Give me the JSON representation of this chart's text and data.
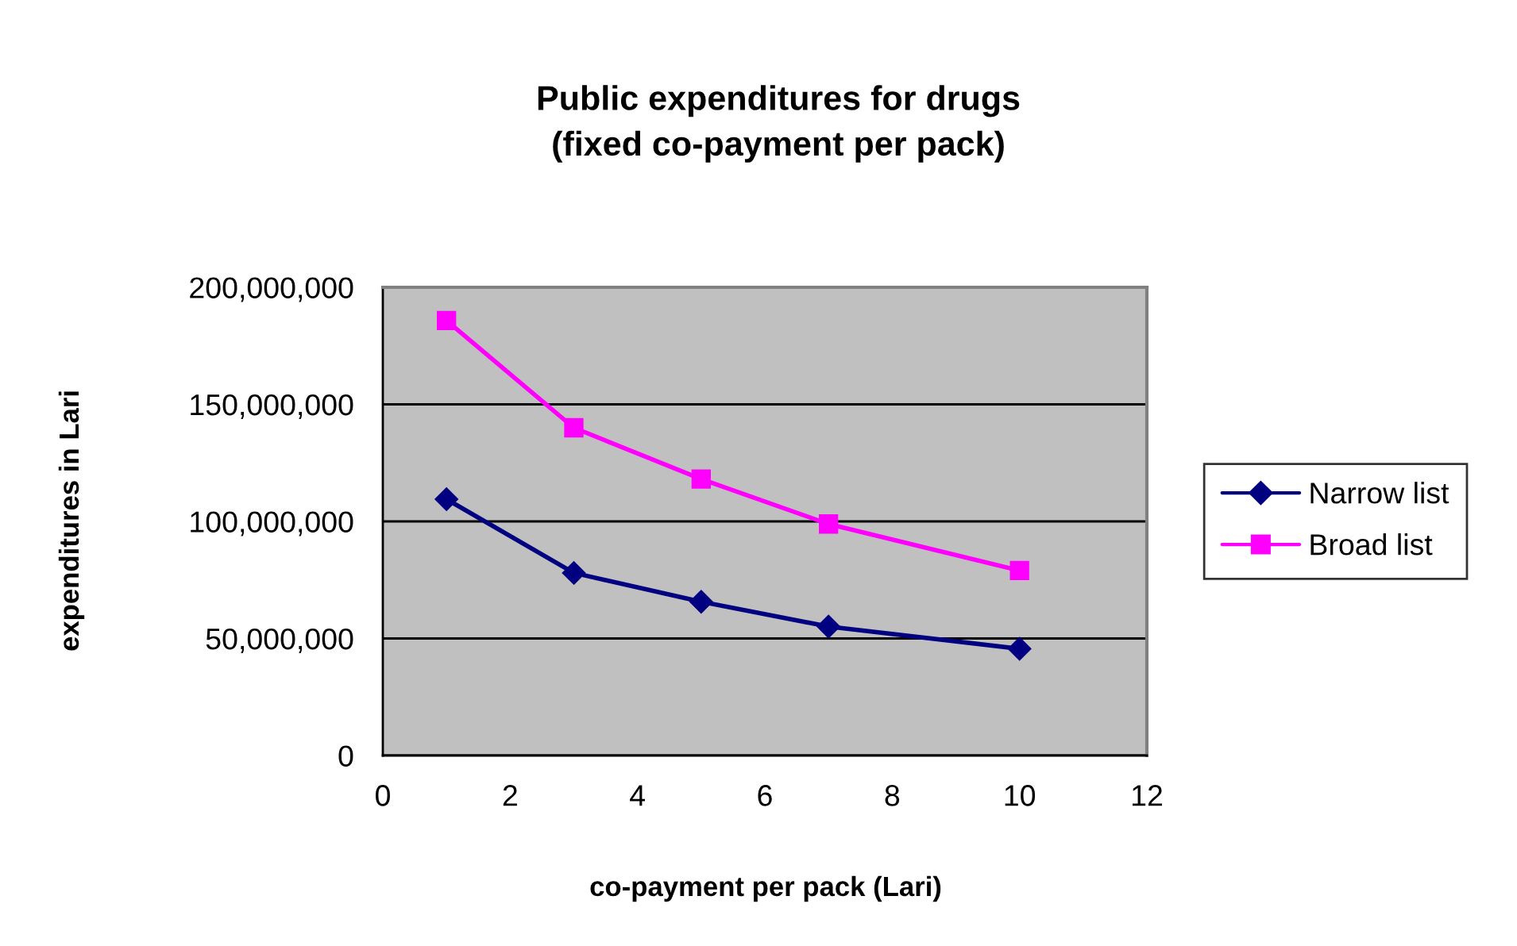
{
  "chart_data": {
    "type": "line",
    "title": "Public expenditures for drugs\n(fixed co-payment per pack)",
    "xlabel": "co-payment per pack (Lari)",
    "ylabel": "expenditures in Lari",
    "x": [
      1,
      3,
      5,
      7,
      10
    ],
    "series": [
      {
        "name": "Narrow list",
        "color": "#000080",
        "marker": "diamond",
        "values": [
          109500000,
          78000000,
          65700000,
          55100000,
          45600000
        ]
      },
      {
        "name": "Broad list",
        "color": "#ff00ff",
        "marker": "square",
        "values": [
          185800000,
          140000000,
          118100000,
          98900000,
          79000000
        ]
      }
    ],
    "xlim": [
      0,
      12
    ],
    "xticks": [
      0,
      2,
      4,
      6,
      8,
      10,
      12
    ],
    "ylim": [
      0,
      200000000
    ],
    "yticks": [
      0,
      {
        "value": 50000000,
        "label": "50,000,000"
      },
      {
        "value": 100000000,
        "label": "100,000,000"
      },
      {
        "value": 150000000,
        "label": "150,000,000"
      },
      {
        "value": 200000000,
        "label": "200,000,000"
      }
    ],
    "grid": "y",
    "legend": "right",
    "line_style": "solid"
  }
}
